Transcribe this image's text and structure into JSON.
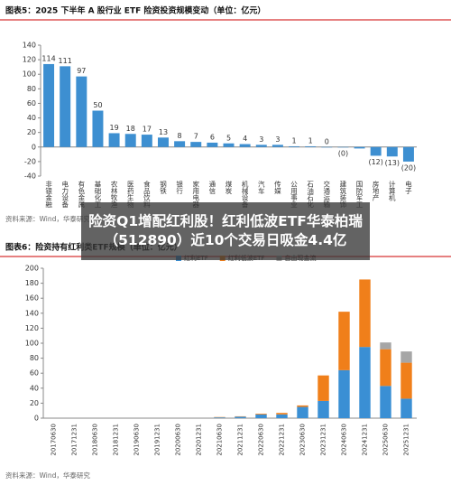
{
  "chart_data": [
    {
      "type": "bar",
      "title": "图表5：2025 下半年 A 股行业 ETF 险资投资规模变动（单位：亿元）",
      "categories": [
        "非银金融",
        "电力设备",
        "有色金属",
        "基础化工",
        "农林牧渔",
        "医药生物",
        "食品饮料",
        "钢铁",
        "银行",
        "家用电器",
        "通信",
        "煤炭",
        "机械设备",
        "汽车",
        "传媒",
        "公用事业",
        "石油石化",
        "交通运输",
        "建筑装饰",
        "国防军工",
        "房地产",
        "计算机",
        "电子"
      ],
      "values": [
        114,
        111,
        97,
        50,
        19,
        18,
        17,
        13,
        8,
        7,
        6,
        5,
        4,
        3,
        3,
        1,
        1,
        0,
        -0.4,
        -2,
        -12,
        -13,
        -20
      ],
      "value_labels": [
        "114",
        "111",
        "97",
        "50",
        "19",
        "18",
        "17",
        "13",
        "8",
        "7",
        "6",
        "5",
        "4",
        "3",
        "3",
        "1",
        "1",
        "0",
        "(0)",
        null,
        "(12)",
        "(13)",
        "(20)"
      ],
      "color": "#3d8fd1",
      "ylim": [
        -40,
        140
      ],
      "yticks": [
        -40,
        -20,
        0,
        20,
        40,
        60,
        80,
        100,
        120,
        140
      ],
      "source": "资料来源：Wind，华泰研究"
    },
    {
      "type": "stacked_bar",
      "title": "图表6：险资持有红利类ETF规模（单位：亿元）",
      "categories": [
        "20170630",
        "20171231",
        "20180630",
        "20181231",
        "20190630",
        "20191231",
        "20200630",
        "20201231",
        "20210630",
        "20211231",
        "20220630",
        "20221231",
        "20230630",
        "20231231",
        "20240630",
        "20241231",
        "20250630",
        "20251231"
      ],
      "series": [
        {
          "name": "红利ETF",
          "color": "#3a8fd4",
          "values": [
            0,
            0,
            0,
            0,
            0,
            0,
            0,
            0,
            1,
            2,
            5,
            5,
            15,
            23,
            64,
            95,
            43,
            26
          ]
        },
        {
          "name": "红利低波ETF",
          "color": "#f07f1a",
          "values": [
            0,
            0,
            0,
            0,
            0,
            0,
            0,
            0,
            0.5,
            0.5,
            1,
            2,
            2,
            34,
            78,
            90,
            49,
            48
          ]
        },
        {
          "name": "自由现金流",
          "color": "#a6a6a6",
          "values": [
            0,
            0,
            0,
            0,
            0,
            0,
            0,
            0,
            0,
            0,
            0,
            0,
            0,
            0,
            0,
            0,
            9,
            15
          ]
        }
      ],
      "ylim": [
        0,
        200
      ],
      "yticks": [
        0,
        20,
        40,
        60,
        80,
        100,
        120,
        140,
        160,
        180,
        200
      ],
      "source": "资料来源：Wind，华泰研究"
    }
  ],
  "headline": "险资Q1增配红利股！红利低波ETF华泰柏瑞（512890）近10个交易日吸金4.4亿"
}
